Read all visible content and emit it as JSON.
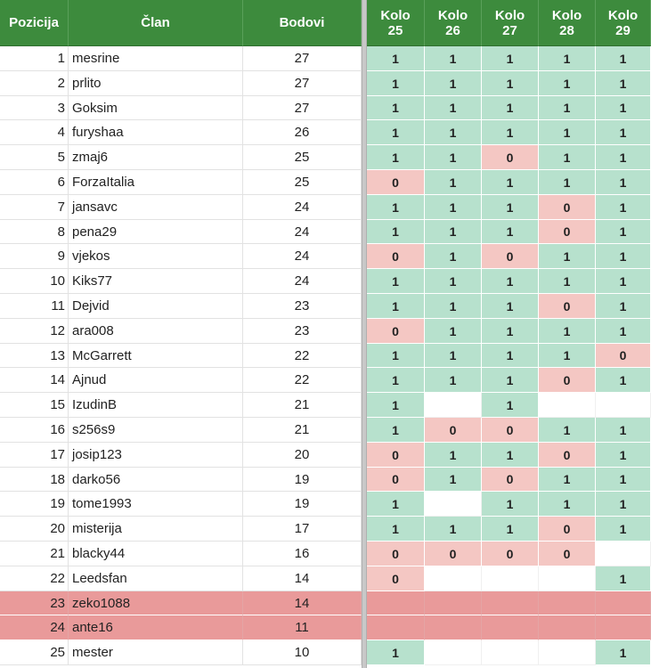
{
  "headers": {
    "pozicija": "Pozicija",
    "clan": "Član",
    "bodovi": "Bodovi",
    "rounds": [
      {
        "l1": "Kolo",
        "l2": "25"
      },
      {
        "l1": "Kolo",
        "l2": "26"
      },
      {
        "l1": "Kolo",
        "l2": "27"
      },
      {
        "l1": "Kolo",
        "l2": "28"
      },
      {
        "l1": "Kolo",
        "l2": "29"
      }
    ]
  },
  "colors": {
    "header": "#3d8b3d",
    "correct": "#b7e1cd",
    "wrong": "#f4c7c3",
    "highlight_row": "#e99a9a"
  },
  "rows": [
    {
      "pos": "1",
      "name": "mesrine",
      "pts": "27",
      "highlight": false,
      "r": [
        "1",
        "1",
        "1",
        "1",
        "1"
      ]
    },
    {
      "pos": "2",
      "name": "prlito",
      "pts": "27",
      "highlight": false,
      "r": [
        "1",
        "1",
        "1",
        "1",
        "1"
      ]
    },
    {
      "pos": "3",
      "name": "Goksim",
      "pts": "27",
      "highlight": false,
      "r": [
        "1",
        "1",
        "1",
        "1",
        "1"
      ]
    },
    {
      "pos": "4",
      "name": "furyshaa",
      "pts": "26",
      "highlight": false,
      "r": [
        "1",
        "1",
        "1",
        "1",
        "1"
      ]
    },
    {
      "pos": "5",
      "name": "zmaj6",
      "pts": "25",
      "highlight": false,
      "r": [
        "1",
        "1",
        "0",
        "1",
        "1"
      ]
    },
    {
      "pos": "6",
      "name": "ForzaItalia",
      "pts": "25",
      "highlight": false,
      "r": [
        "0",
        "1",
        "1",
        "1",
        "1"
      ]
    },
    {
      "pos": "7",
      "name": "jansavc",
      "pts": "24",
      "highlight": false,
      "r": [
        "1",
        "1",
        "1",
        "0",
        "1"
      ]
    },
    {
      "pos": "8",
      "name": "pena29",
      "pts": "24",
      "highlight": false,
      "r": [
        "1",
        "1",
        "1",
        "0",
        "1"
      ]
    },
    {
      "pos": "9",
      "name": "vjekos",
      "pts": "24",
      "highlight": false,
      "r": [
        "0",
        "1",
        "0",
        "1",
        "1"
      ]
    },
    {
      "pos": "10",
      "name": "Kiks77",
      "pts": "24",
      "highlight": false,
      "r": [
        "1",
        "1",
        "1",
        "1",
        "1"
      ]
    },
    {
      "pos": "11",
      "name": "Dejvid",
      "pts": "23",
      "highlight": false,
      "r": [
        "1",
        "1",
        "1",
        "0",
        "1"
      ]
    },
    {
      "pos": "12",
      "name": "ara008",
      "pts": "23",
      "highlight": false,
      "r": [
        "0",
        "1",
        "1",
        "1",
        "1"
      ]
    },
    {
      "pos": "13",
      "name": "McGarrett",
      "pts": "22",
      "highlight": false,
      "r": [
        "1",
        "1",
        "1",
        "1",
        "0"
      ]
    },
    {
      "pos": "14",
      "name": "Ajnud",
      "pts": "22",
      "highlight": false,
      "r": [
        "1",
        "1",
        "1",
        "0",
        "1"
      ]
    },
    {
      "pos": "15",
      "name": "IzudinB",
      "pts": "21",
      "highlight": false,
      "r": [
        "1",
        "",
        "1",
        "",
        ""
      ]
    },
    {
      "pos": "16",
      "name": "s256s9",
      "pts": "21",
      "highlight": false,
      "r": [
        "1",
        "0",
        "0",
        "1",
        "1"
      ]
    },
    {
      "pos": "17",
      "name": "josip123",
      "pts": "20",
      "highlight": false,
      "r": [
        "0",
        "1",
        "1",
        "0",
        "1"
      ]
    },
    {
      "pos": "18",
      "name": "darko56",
      "pts": "19",
      "highlight": false,
      "r": [
        "0",
        "1",
        "0",
        "1",
        "1"
      ]
    },
    {
      "pos": "19",
      "name": "tome1993",
      "pts": "19",
      "highlight": false,
      "r": [
        "1",
        "",
        "1",
        "1",
        "1"
      ]
    },
    {
      "pos": "20",
      "name": "misterija",
      "pts": "17",
      "highlight": false,
      "r": [
        "1",
        "1",
        "1",
        "0",
        "1"
      ]
    },
    {
      "pos": "21",
      "name": "blacky44",
      "pts": "16",
      "highlight": false,
      "r": [
        "0",
        "0",
        "0",
        "0",
        ""
      ]
    },
    {
      "pos": "22",
      "name": "Leedsfan",
      "pts": "14",
      "highlight": false,
      "r": [
        "0",
        "",
        "",
        "",
        "1"
      ]
    },
    {
      "pos": "23",
      "name": "zeko1088",
      "pts": "14",
      "highlight": true,
      "r": [
        "",
        "",
        "",
        "",
        ""
      ]
    },
    {
      "pos": "24",
      "name": "ante16",
      "pts": "11",
      "highlight": true,
      "r": [
        "",
        "",
        "",
        "",
        ""
      ]
    },
    {
      "pos": "25",
      "name": "mester",
      "pts": "10",
      "highlight": false,
      "r": [
        "1",
        "",
        "",
        "",
        "1"
      ]
    }
  ]
}
